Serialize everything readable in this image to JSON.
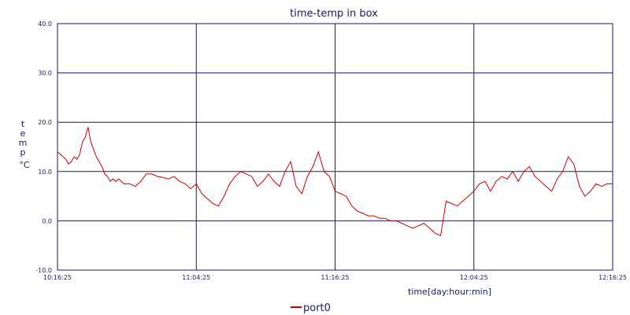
{
  "chart_data": {
    "type": "line",
    "title": "time-temp in box",
    "xlabel": "time[day:hour:min]",
    "ylabel": "temp",
    "ylabel_unit": "°C",
    "ylim": [
      -10,
      40
    ],
    "y_ticks": [
      "-10.0",
      "0.0",
      "10.0",
      "20.0",
      "30.0",
      "40.0"
    ],
    "x_ticks": [
      "10:16:25",
      "11:04:25",
      "11:16:25",
      "12:04:25",
      "12:16:25"
    ],
    "grid": true,
    "legend_position": "bottom-center",
    "colors": {
      "line": "#cc0000",
      "grid": "#1a1a66",
      "text": "#1a1a66"
    },
    "series": [
      {
        "name": "port0",
        "x": [
          0,
          0.01,
          0.015,
          0.02,
          0.025,
          0.03,
          0.035,
          0.04,
          0.045,
          0.05,
          0.055,
          0.06,
          0.065,
          0.07,
          0.075,
          0.08,
          0.085,
          0.09,
          0.095,
          0.1,
          0.105,
          0.11,
          0.12,
          0.13,
          0.14,
          0.15,
          0.16,
          0.17,
          0.18,
          0.19,
          0.2,
          0.21,
          0.22,
          0.23,
          0.24,
          0.25,
          0.26,
          0.27,
          0.28,
          0.29,
          0.3,
          0.31,
          0.32,
          0.33,
          0.34,
          0.35,
          0.36,
          0.37,
          0.38,
          0.39,
          0.4,
          0.41,
          0.42,
          0.43,
          0.44,
          0.45,
          0.46,
          0.47,
          0.48,
          0.49,
          0.5,
          0.51,
          0.52,
          0.53,
          0.54,
          0.55,
          0.56,
          0.57,
          0.58,
          0.59,
          0.6,
          0.61,
          0.62,
          0.63,
          0.64,
          0.65,
          0.66,
          0.67,
          0.68,
          0.69,
          0.7,
          0.71,
          0.72,
          0.73,
          0.74,
          0.75,
          0.76,
          0.77,
          0.78,
          0.79,
          0.8,
          0.81,
          0.82,
          0.83,
          0.84,
          0.85,
          0.86,
          0.87,
          0.88,
          0.89,
          0.9,
          0.91,
          0.92,
          0.93,
          0.94,
          0.95,
          0.96,
          0.97,
          0.98,
          0.99,
          1.0
        ],
        "values": [
          14,
          13,
          12.5,
          11.5,
          12,
          13,
          12.5,
          13.5,
          16,
          17,
          19,
          16,
          14.5,
          13,
          12,
          11,
          9.5,
          9,
          8,
          8.5,
          8,
          8.5,
          7.5,
          7.5,
          7,
          8,
          9.5,
          9.5,
          9,
          8.8,
          8.5,
          9,
          8,
          7.5,
          6.5,
          7.5,
          5.5,
          4.5,
          3.5,
          3,
          5,
          7.5,
          9,
          10,
          9.5,
          9,
          7,
          8,
          9.5,
          8,
          7,
          10,
          12,
          7,
          5.5,
          9,
          11,
          14,
          10,
          9,
          6,
          5.5,
          5,
          3,
          2,
          1.5,
          1,
          1,
          0.5,
          0.5,
          0,
          0,
          -0.5,
          -1,
          -1.5,
          -1,
          -0.5,
          -1.5,
          -2.5,
          -3,
          4,
          3.5,
          3,
          4,
          5,
          6,
          7.5,
          8,
          6,
          8,
          9,
          8.5,
          10,
          8,
          10,
          11,
          9,
          8,
          7,
          6,
          8.5,
          10,
          13,
          11.5,
          7,
          5,
          6,
          7.5,
          7,
          7.5,
          7.5
        ]
      }
    ]
  }
}
